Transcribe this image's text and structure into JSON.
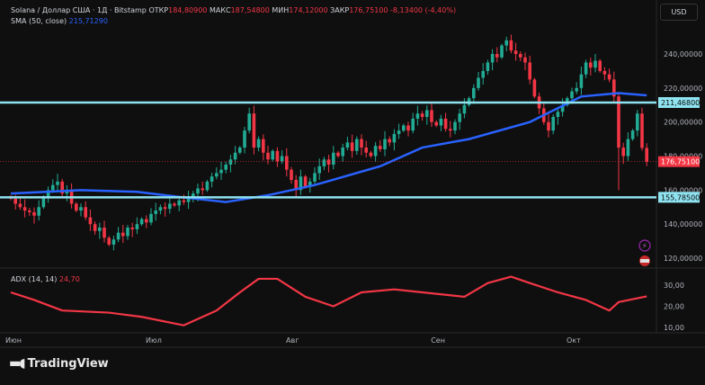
{
  "header": {
    "symbol": "Solana / Доллар США · 1Д · Bitstamp",
    "open_label": "ОТКР",
    "open": "184,80900",
    "high_label": "МАКС",
    "high": "187,54800",
    "low_label": "МИН",
    "low": "174,12000",
    "close_label": "ЗАКР",
    "close": "176,75100",
    "change": "-8,13400 (-4,40%)",
    "sma_label": "SMA (50, close)",
    "sma_value": "215,71290",
    "currency": "USD"
  },
  "adx_legend": {
    "label": "ADX (14, 14)",
    "value": "24,70"
  },
  "logo": "TradingView",
  "colors": {
    "up": "#22ab94",
    "down": "#f23645",
    "sma": "#2962ff",
    "adx": "#f23645",
    "hline": "#8fe3f0"
  },
  "chart_data": {
    "type": "candlestick",
    "price_axis": {
      "min": 100,
      "max": 260,
      "ticks": [
        120,
        140,
        160,
        180,
        200,
        220,
        240
      ],
      "tick_labels": [
        "120,00000",
        "140,00000",
        "160,00000",
        "180,00000",
        "200,00000",
        "220,00000",
        "240,00000"
      ]
    },
    "x_labels": [
      {
        "day": 0,
        "label": "Июн"
      },
      {
        "day": 30,
        "label": "Июл"
      },
      {
        "day": 60,
        "label": "Авг"
      },
      {
        "day": 91,
        "label": "Сен"
      },
      {
        "day": 120,
        "label": "Окт"
      }
    ],
    "closes": [
      155,
      152,
      150,
      148,
      147,
      145,
      150,
      156,
      160,
      163,
      165,
      158,
      160,
      152,
      148,
      150,
      144,
      140,
      136,
      138,
      132,
      128,
      131,
      135,
      133,
      138,
      137,
      140,
      143,
      141,
      146,
      148,
      150,
      149,
      152,
      151,
      154,
      153,
      155,
      158,
      161,
      160,
      165,
      168,
      170,
      172,
      175,
      178,
      182,
      185,
      195,
      205,
      185,
      190,
      182,
      178,
      183,
      177,
      180,
      172,
      166,
      160,
      168,
      162,
      165,
      170,
      174,
      178,
      175,
      182,
      180,
      185,
      188,
      183,
      190,
      185,
      182,
      180,
      186,
      184,
      190,
      188,
      193,
      195,
      198,
      195,
      202,
      205,
      203,
      207,
      200,
      198,
      202,
      196,
      195,
      200,
      205,
      210,
      214,
      220,
      226,
      230,
      235,
      240,
      238,
      245,
      248,
      242,
      240,
      238,
      235,
      225,
      215,
      208,
      200,
      195,
      203,
      206,
      210,
      214,
      218,
      220,
      228,
      235,
      232,
      236,
      230,
      228,
      225,
      215,
      185,
      180,
      190,
      195,
      205,
      184.809,
      176.751
    ],
    "last_candle": {
      "open": 184.809,
      "high": 187.548,
      "low": 174.12,
      "close": 176.751
    },
    "sma": {
      "name": "SMA (50, close)",
      "points": [
        [
          0,
          158
        ],
        [
          15,
          160
        ],
        [
          27,
          159
        ],
        [
          36,
          156
        ],
        [
          46,
          153
        ],
        [
          55,
          157
        ],
        [
          65,
          163
        ],
        [
          79,
          174
        ],
        [
          88,
          185
        ],
        [
          98,
          190
        ],
        [
          111,
          200
        ],
        [
          122,
          215
        ],
        [
          130,
          217
        ],
        [
          136,
          215.7
        ]
      ]
    },
    "horizontal_lines": [
      {
        "value": 211.468,
        "label": "211,46800"
      },
      {
        "value": 155.785,
        "label": "155,78500"
      }
    ],
    "last_price_label": "176,75100",
    "adx": {
      "axis": {
        "ticks": [
          10,
          20,
          30
        ],
        "tick_labels": [
          "10,00",
          "20,00",
          "30,00"
        ]
      },
      "points": [
        [
          0,
          26.6
        ],
        [
          5,
          23
        ],
        [
          11,
          18
        ],
        [
          21,
          17
        ],
        [
          28,
          15
        ],
        [
          37,
          11
        ],
        [
          44,
          18
        ],
        [
          49,
          26.6
        ],
        [
          53,
          33
        ],
        [
          57,
          33
        ],
        [
          63,
          24.5
        ],
        [
          69,
          20
        ],
        [
          75,
          26.6
        ],
        [
          82,
          28
        ],
        [
          88,
          26.6
        ],
        [
          97,
          24.5
        ],
        [
          102,
          31
        ],
        [
          107,
          34
        ],
        [
          111,
          31
        ],
        [
          117,
          26.6
        ],
        [
          123,
          23
        ],
        [
          128,
          18
        ],
        [
          130,
          22
        ],
        [
          136,
          24.7
        ]
      ]
    }
  }
}
